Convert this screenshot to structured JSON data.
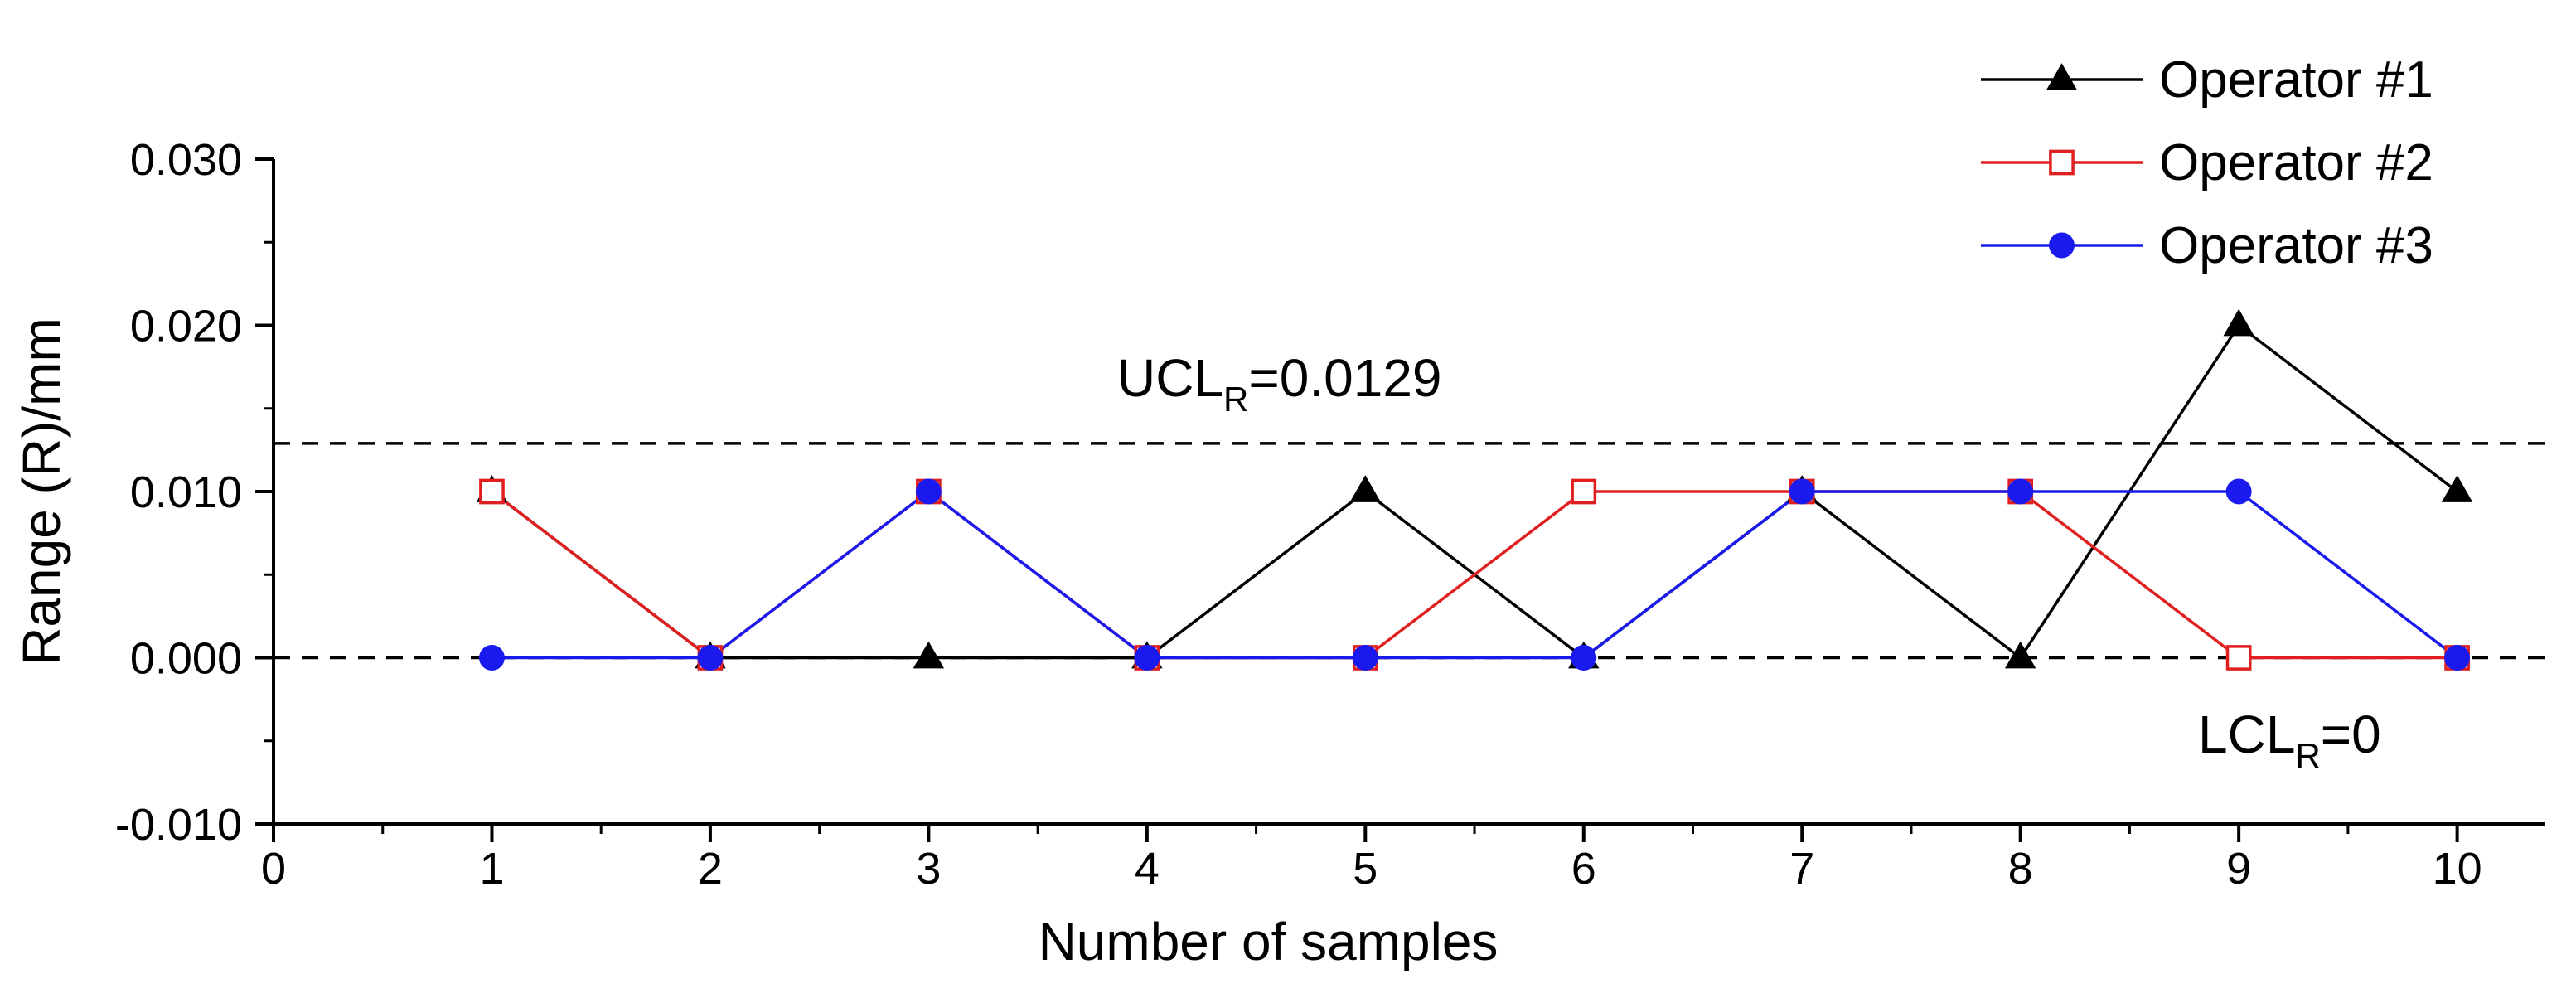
{
  "chart_data": {
    "type": "line",
    "title": "",
    "xlabel": "Number of samples",
    "ylabel": "Range (R)/mm",
    "xlim": [
      0,
      10.4
    ],
    "ylim": [
      -0.01,
      0.03
    ],
    "x_ticks": [
      0,
      1,
      2,
      3,
      4,
      5,
      6,
      7,
      8,
      9,
      10
    ],
    "x_tick_labels": [
      "0",
      "1",
      "2",
      "3",
      "4",
      "5",
      "6",
      "7",
      "8",
      "9",
      "10"
    ],
    "y_ticks": [
      -0.01,
      0,
      0.01,
      0.02,
      0.03
    ],
    "y_tick_labels": [
      "-0.010",
      "0.000",
      "0.010",
      "0.020",
      "0.030"
    ],
    "x": [
      1,
      2,
      3,
      4,
      5,
      6,
      7,
      8,
      9,
      10
    ],
    "series": [
      {
        "name": "Operator #1",
        "color": "#000000",
        "marker": "triangle-filled",
        "values": [
          0.01,
          0,
          0,
          0,
          0.01,
          0,
          0.01,
          0,
          0.02,
          0.01
        ]
      },
      {
        "name": "Operator #2",
        "color": "#e02020",
        "marker": "square-open",
        "values": [
          0.01,
          0,
          0.01,
          0,
          0,
          0.01,
          0.01,
          0.01,
          0,
          0
        ]
      },
      {
        "name": "Operator #3",
        "color": "#1a1aee",
        "marker": "circle-filled",
        "values": [
          0,
          0,
          0.01,
          0,
          0,
          0,
          0.01,
          0.01,
          0.01,
          0
        ]
      }
    ],
    "reference_lines": [
      {
        "name": "ucl",
        "value": 0.0129,
        "label_main": "UCL",
        "label_sub": "R",
        "label_tail": "=0.0129"
      },
      {
        "name": "lcl",
        "value": 0,
        "label_main": "LCL",
        "label_sub": "R",
        "label_tail": "=0"
      }
    ],
    "legend_position": "top-right"
  }
}
